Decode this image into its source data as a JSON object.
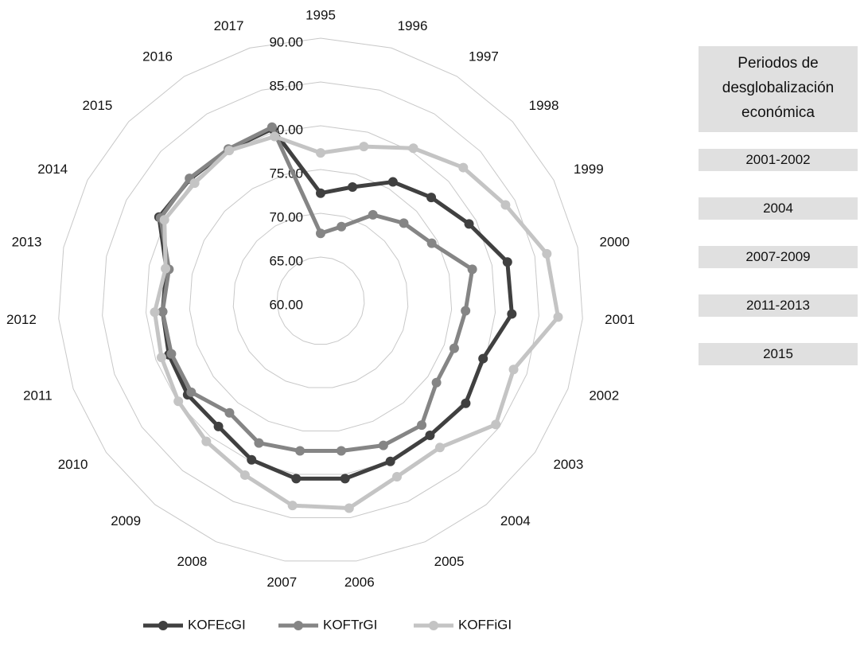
{
  "chart_data": {
    "type": "radar",
    "categories": [
      "1995",
      "1996",
      "1997",
      "1998",
      "1999",
      "2000",
      "2001",
      "2002",
      "2003",
      "2004",
      "2005",
      "2006",
      "2007",
      "2008",
      "2009",
      "2010",
      "2011",
      "2012",
      "2013",
      "2014",
      "2015",
      "2016",
      "2017"
    ],
    "series": [
      {
        "name": "KOFEcGI",
        "color": "#404040",
        "values": [
          72.3,
          73.5,
          75.9,
          77.3,
          79.1,
          81.8,
          81.9,
          79.7,
          80.3,
          79.8,
          80.0,
          80.5,
          80.5,
          79.8,
          78.5,
          78.6,
          78.4,
          78.1,
          78.0,
          80.8,
          80.4,
          80.2,
          80.4
        ]
      },
      {
        "name": "KOFTrGI",
        "color": "#858585",
        "values": [
          67.7,
          68.8,
          71.5,
          73.0,
          74.3,
          77.7,
          76.6,
          76.2,
          76.2,
          78.3,
          78.0,
          77.3,
          77.3,
          77.7,
          76.5,
          78.1,
          78.1,
          78.1,
          77.7,
          80.6,
          80.5,
          80.3,
          80.6
        ]
      },
      {
        "name": "KOFFiGI",
        "color": "#c4c4c4",
        "values": [
          76.9,
          78.3,
          80.4,
          82.3,
          83.8,
          86.4,
          87.2,
          83.4,
          84.5,
          81.6,
          81.9,
          83.9,
          83.6,
          81.7,
          80.7,
          79.9,
          79.3,
          79.0,
          78.1,
          80.1,
          79.7,
          80.1,
          79.5
        ]
      }
    ],
    "ylim": [
      60,
      90
    ],
    "yticks": [
      {
        "value": 60,
        "label": "60.00"
      },
      {
        "value": 65,
        "label": "65.00"
      },
      {
        "value": 70,
        "label": "70.00"
      },
      {
        "value": 75,
        "label": "75.00"
      },
      {
        "value": 80,
        "label": "80.00"
      },
      {
        "value": 85,
        "label": "85.00"
      },
      {
        "value": 90,
        "label": "90.00"
      }
    ],
    "grid": true,
    "legend": "bottom"
  },
  "side_panel": {
    "title": "Periodos de desglobalización económica",
    "items": [
      "2001-2002",
      "2004",
      "2007-2009",
      "2011-2013",
      "2015"
    ]
  }
}
